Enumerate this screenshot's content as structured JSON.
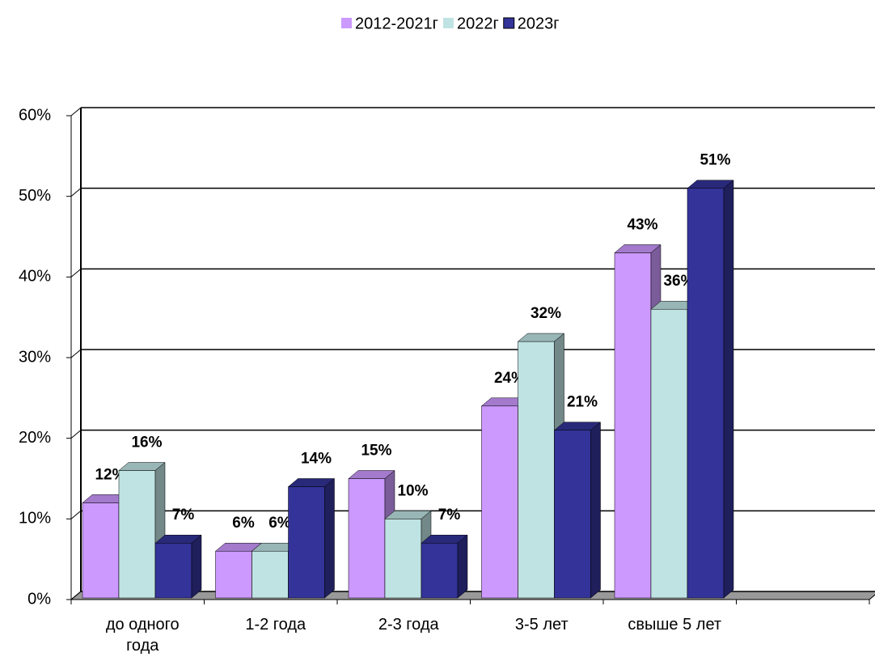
{
  "chart_data": {
    "type": "bar3d",
    "categories": [
      "до одного года",
      "1-2 года",
      "2-3 года",
      "3-5 лет",
      "свыше 5 лет",
      null
    ],
    "series": [
      {
        "name": "2012-2021г",
        "color": "#cc99ff",
        "values": [
          12,
          6,
          15,
          24,
          43,
          null
        ],
        "value_labels": [
          "12%",
          "6%",
          "15%",
          "24%",
          "43%",
          null
        ]
      },
      {
        "name": "2022г",
        "color": "#bfe3e3",
        "values": [
          16,
          6,
          10,
          32,
          36,
          null
        ],
        "value_labels": [
          "16%",
          "6%",
          "10%",
          "32%",
          "36%",
          null
        ]
      },
      {
        "name": "2023г",
        "color": "#333399",
        "values": [
          7,
          14,
          7,
          21,
          51,
          null
        ],
        "value_labels": [
          "7%",
          "14%",
          "7%",
          "21%",
          "51%",
          null
        ]
      }
    ],
    "ylim": [
      0,
      60
    ],
    "yticks": [
      {
        "value": 0,
        "label": "0%"
      },
      {
        "value": 10,
        "label": "10%"
      },
      {
        "value": 20,
        "label": "20%"
      },
      {
        "value": 30,
        "label": "30%"
      },
      {
        "value": 40,
        "label": "40%"
      },
      {
        "value": 50,
        "label": "50%"
      },
      {
        "value": 60,
        "label": "60%"
      }
    ],
    "grid": true,
    "legend": "top"
  }
}
